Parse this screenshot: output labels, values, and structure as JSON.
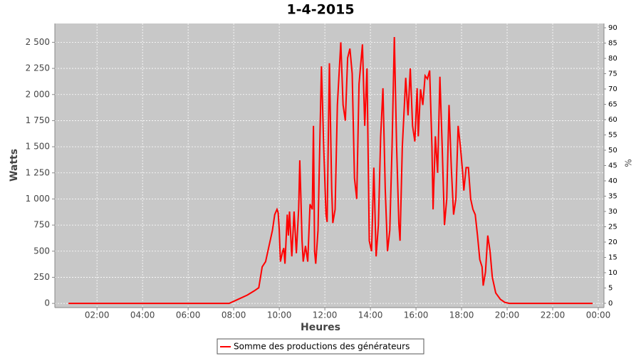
{
  "chart_data": {
    "type": "line",
    "title": "1-4-2015",
    "x_label": "Heures",
    "y_label": "Watts",
    "y2_label": "%",
    "xlim": [
      0.15,
      24.25
    ],
    "xticks": [
      {
        "value": 2,
        "label": "02:00"
      },
      {
        "value": 4,
        "label": "04:00"
      },
      {
        "value": 6,
        "label": "06:00"
      },
      {
        "value": 8,
        "label": "08:00"
      },
      {
        "value": 10,
        "label": "10:00"
      },
      {
        "value": 12,
        "label": "12:00"
      },
      {
        "value": 14,
        "label": "14:00"
      },
      {
        "value": 16,
        "label": "16:00"
      },
      {
        "value": 18,
        "label": "18:00"
      },
      {
        "value": 20,
        "label": "20:00"
      },
      {
        "value": 22,
        "label": "22:00"
      },
      {
        "value": 24,
        "label": "00:00"
      }
    ],
    "ylim": [
      -40,
      2680
    ],
    "yticks": [
      0,
      250,
      500,
      750,
      {
        "value": 1000,
        "label": "1 000"
      },
      {
        "value": 1250,
        "label": "1 250"
      },
      {
        "value": 1500,
        "label": "1 500"
      },
      {
        "value": 1750,
        "label": "1 750"
      },
      {
        "value": 2000,
        "label": "2 000"
      },
      {
        "value": 2250,
        "label": "2 250"
      },
      {
        "value": 2500,
        "label": "2 500"
      }
    ],
    "y2lim": [
      -1.4,
      91.4
    ],
    "y2ticks": [
      0,
      5,
      10,
      15,
      20,
      25,
      30,
      35,
      40,
      45,
      50,
      55,
      60,
      65,
      70,
      75,
      80,
      85,
      90
    ],
    "grid": true,
    "series": [
      {
        "name": "Somme des productions des  générateurs",
        "color": "#ff0000",
        "x": [
          0.75,
          4,
          7.8,
          8.0,
          8.3,
          8.6,
          8.9,
          9.1,
          9.25,
          9.4,
          9.55,
          9.7,
          9.8,
          9.9,
          9.95,
          10.0,
          10.05,
          10.15,
          10.2,
          10.25,
          10.35,
          10.4,
          10.45,
          10.55,
          10.65,
          10.75,
          10.85,
          10.9,
          10.95,
          11.0,
          11.05,
          11.15,
          11.25,
          11.35,
          11.45,
          11.5,
          11.55,
          11.6,
          11.7,
          11.85,
          11.95,
          12.05,
          12.1,
          12.2,
          12.3,
          12.35,
          12.45,
          12.55,
          12.7,
          12.8,
          12.9,
          13.0,
          13.1,
          13.2,
          13.3,
          13.4,
          13.5,
          13.65,
          13.75,
          13.85,
          13.95,
          14.05,
          14.15,
          14.25,
          14.35,
          14.45,
          14.55,
          14.65,
          14.75,
          14.85,
          14.95,
          15.05,
          15.15,
          15.25,
          15.3,
          15.4,
          15.55,
          15.65,
          15.75,
          15.85,
          15.95,
          16.05,
          16.1,
          16.2,
          16.3,
          16.4,
          16.5,
          16.6,
          16.7,
          16.75,
          16.85,
          16.95,
          17.05,
          17.15,
          17.25,
          17.35,
          17.45,
          17.55,
          17.65,
          17.75,
          17.85,
          17.95,
          18.05,
          18.1,
          18.2,
          18.3,
          18.4,
          18.5,
          18.6,
          18.7,
          18.8,
          18.9,
          18.95,
          19.05,
          19.15,
          19.25,
          19.35,
          19.5,
          19.7,
          19.9,
          20.1,
          22,
          23.75
        ],
        "values": [
          0,
          0,
          0,
          20,
          50,
          80,
          120,
          150,
          350,
          400,
          550,
          700,
          850,
          900,
          870,
          700,
          400,
          500,
          530,
          380,
          850,
          650,
          880,
          450,
          880,
          480,
          900,
          1370,
          1000,
          600,
          400,
          550,
          400,
          950,
          900,
          1700,
          500,
          380,
          700,
          2270,
          1500,
          850,
          780,
          2300,
          1100,
          770,
          900,
          1900,
          2500,
          1900,
          1750,
          2350,
          2440,
          2200,
          1200,
          1000,
          2100,
          2480,
          1700,
          2250,
          600,
          500,
          1300,
          450,
          750,
          1600,
          2060,
          1100,
          500,
          700,
          1500,
          2550,
          1500,
          750,
          600,
          1500,
          2160,
          1800,
          2250,
          1700,
          1550,
          2060,
          1600,
          2050,
          1900,
          2180,
          2150,
          2230,
          1500,
          900,
          1600,
          1250,
          2170,
          1500,
          750,
          1000,
          1900,
          1300,
          850,
          1000,
          1700,
          1500,
          1250,
          1080,
          1300,
          1300,
          1000,
          900,
          850,
          650,
          420,
          350,
          170,
          300,
          650,
          500,
          250,
          100,
          40,
          10,
          0,
          0,
          0
        ]
      }
    ]
  }
}
